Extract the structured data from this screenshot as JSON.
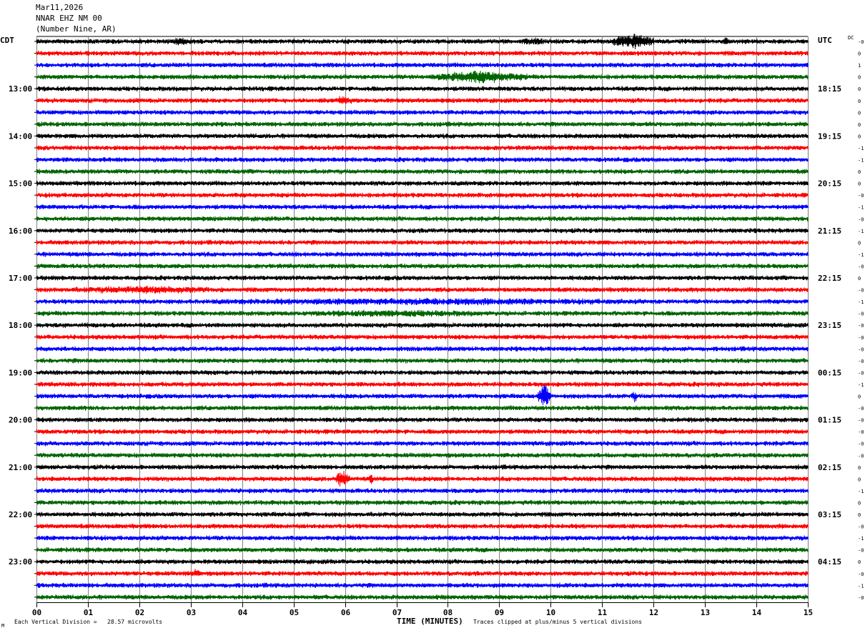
{
  "header": {
    "date": "Mar11,2026",
    "station": "NNAR EHZ NM 00",
    "location": "(Number Nine, AR)"
  },
  "labels": {
    "left_tz": "CDT",
    "right_tz": "UTC",
    "dc": "DC"
  },
  "footer": {
    "scale": "Each Vertical Division =   28.57 microvolts",
    "xlabel": "TIME (MINUTES)",
    "clip": "Traces clipped at plus/minus 5 vertical divisions",
    "mark": "M"
  },
  "chart_data": {
    "type": "line",
    "title": "NNAR EHZ NM 00",
    "xlabel": "TIME (MINUTES)",
    "xlim": [
      0,
      15
    ],
    "x_ticks": [
      "00",
      "01",
      "02",
      "03",
      "04",
      "05",
      "06",
      "07",
      "08",
      "09",
      "10",
      "11",
      "12",
      "13",
      "14",
      "15"
    ],
    "trace_count": 48,
    "trace_colors": [
      "#000000",
      "#ff0000",
      "#0000ff",
      "#006400"
    ],
    "left_hour_labels": [
      {
        "trace": 4,
        "label": "13:00"
      },
      {
        "trace": 8,
        "label": "14:00"
      },
      {
        "trace": 12,
        "label": "15:00"
      },
      {
        "trace": 16,
        "label": "16:00"
      },
      {
        "trace": 20,
        "label": "17:00"
      },
      {
        "trace": 24,
        "label": "18:00"
      },
      {
        "trace": 28,
        "label": "19:00"
      },
      {
        "trace": 32,
        "label": "20:00"
      },
      {
        "trace": 36,
        "label": "21:00"
      },
      {
        "trace": 40,
        "label": "22:00"
      },
      {
        "trace": 44,
        "label": "23:00"
      }
    ],
    "right_hour_labels": [
      {
        "trace": 4,
        "label": "18:15"
      },
      {
        "trace": 8,
        "label": "19:15"
      },
      {
        "trace": 12,
        "label": "20:15"
      },
      {
        "trace": 16,
        "label": "21:15"
      },
      {
        "trace": 20,
        "label": "22:15"
      },
      {
        "trace": 24,
        "label": "23:15"
      },
      {
        "trace": 28,
        "label": "00:15"
      },
      {
        "trace": 32,
        "label": "01:15"
      },
      {
        "trace": 36,
        "label": "02:15"
      },
      {
        "trace": 40,
        "label": "03:15"
      },
      {
        "trace": 44,
        "label": "04:15"
      }
    ],
    "dc_offsets": [
      "-0",
      "0",
      "1",
      "0",
      "0",
      "0",
      "0",
      "0",
      "0",
      "-1",
      "-1",
      "0",
      "0",
      "-0",
      "-1",
      "-0",
      "-1",
      "0",
      "-1",
      "-0",
      "0",
      "-0",
      "-1",
      "-0",
      "-0",
      "-0",
      "-0",
      "-0",
      "-0",
      "-1",
      "0",
      "-0",
      "-0",
      "-0",
      "-0",
      "-0",
      "0",
      "0",
      "-1",
      "0",
      "0",
      "-0",
      "-1",
      "-0",
      "0",
      "-0",
      "-1",
      "-0"
    ],
    "events": [
      {
        "trace": 0,
        "minute_start": 2.4,
        "minute_end": 3.2,
        "amp": 1.6
      },
      {
        "trace": 0,
        "minute_start": 9.3,
        "minute_end": 10.0,
        "amp": 1.8
      },
      {
        "trace": 0,
        "minute_start": 11.2,
        "minute_end": 12.0,
        "amp": 3.4
      },
      {
        "trace": 0,
        "minute_start": 13.3,
        "minute_end": 13.5,
        "amp": 1.8
      },
      {
        "trace": 3,
        "minute_start": 7.6,
        "minute_end": 9.6,
        "amp": 2.8
      },
      {
        "trace": 5,
        "minute_start": 5.7,
        "minute_end": 6.2,
        "amp": 2.0
      },
      {
        "trace": 21,
        "minute_start": 0.0,
        "minute_end": 4.2,
        "amp": 1.8
      },
      {
        "trace": 22,
        "minute_start": 0.0,
        "minute_end": 15.0,
        "amp": 1.6
      },
      {
        "trace": 23,
        "minute_start": 4.0,
        "minute_end": 10.0,
        "amp": 1.6
      },
      {
        "trace": 30,
        "minute_start": 9.75,
        "minute_end": 10.0,
        "amp": 5.0
      },
      {
        "trace": 30,
        "minute_start": 11.55,
        "minute_end": 11.7,
        "amp": 2.4
      },
      {
        "trace": 37,
        "minute_start": 5.8,
        "minute_end": 6.1,
        "amp": 3.6
      },
      {
        "trace": 37,
        "minute_start": 6.45,
        "minute_end": 6.55,
        "amp": 2.4
      },
      {
        "trace": 45,
        "minute_start": 3.0,
        "minute_end": 3.2,
        "amp": 2.4
      }
    ]
  }
}
